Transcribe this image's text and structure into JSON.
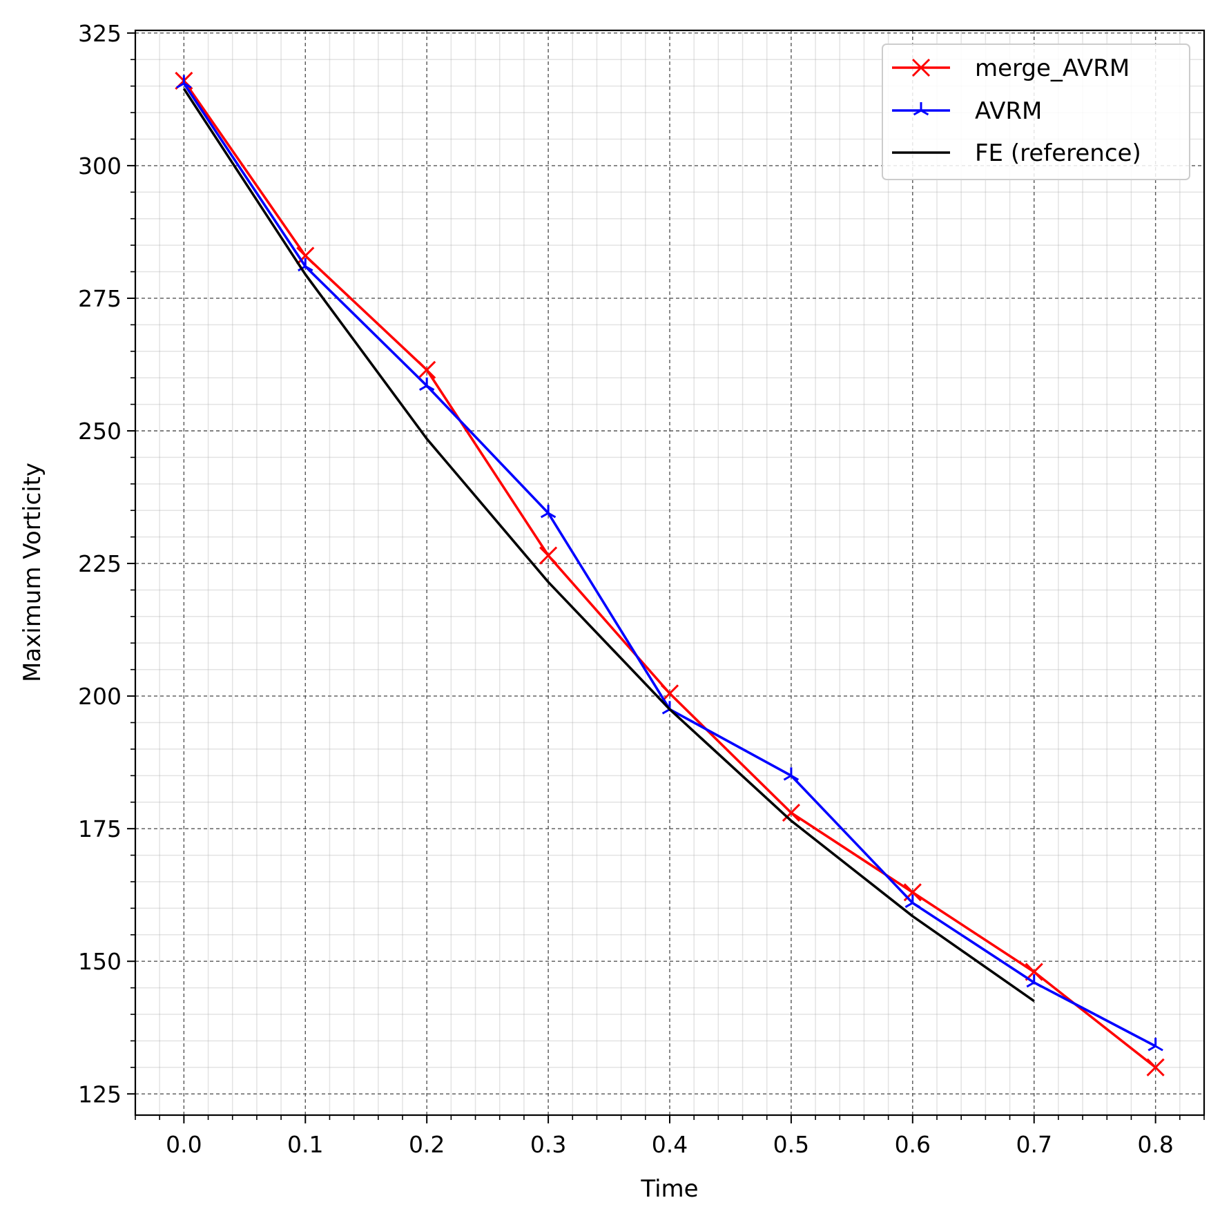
{
  "chart_data": {
    "type": "line",
    "title": "",
    "xlabel": "Time",
    "ylabel": "Maximum Vorticity",
    "xlim": [
      -0.04,
      0.84
    ],
    "ylim": [
      121,
      325.5
    ],
    "x_ticks": [
      0.0,
      0.1,
      0.2,
      0.3,
      0.4,
      0.5,
      0.6,
      0.7,
      0.8
    ],
    "x_tick_labels": [
      "0.0",
      "0.1",
      "0.2",
      "0.3",
      "0.4",
      "0.5",
      "0.6",
      "0.7",
      "0.8"
    ],
    "y_ticks": [
      125,
      150,
      175,
      200,
      225,
      250,
      275,
      300,
      325
    ],
    "y_tick_labels": [
      "125",
      "150",
      "175",
      "200",
      "225",
      "250",
      "275",
      "300",
      "325"
    ],
    "grid": "major dashed, minor solid light",
    "legend_position": "top-right",
    "series": [
      {
        "name": "merge_AVRM",
        "color": "#ff0000",
        "marker": "x",
        "x": [
          0.0,
          0.1,
          0.2,
          0.3,
          0.4,
          0.5,
          0.6,
          0.7,
          0.8
        ],
        "y": [
          316,
          283,
          261.5,
          226.5,
          200.5,
          178,
          163,
          148,
          130
        ]
      },
      {
        "name": "AVRM",
        "color": "#0000ff",
        "marker": "tri_down",
        "x": [
          0.0,
          0.1,
          0.2,
          0.3,
          0.4,
          0.5,
          0.6,
          0.7,
          0.8
        ],
        "y": [
          315.5,
          281,
          258.5,
          234.5,
          197.5,
          185,
          161,
          146,
          134
        ]
      },
      {
        "name": "FE (reference)",
        "color": "#000000",
        "marker": "none",
        "x": [
          0.0,
          0.1,
          0.2,
          0.3,
          0.4,
          0.5,
          0.6,
          0.7
        ],
        "y": [
          314.5,
          279.5,
          248.5,
          221.5,
          197.5,
          176.5,
          158.5,
          142.5
        ]
      }
    ]
  }
}
